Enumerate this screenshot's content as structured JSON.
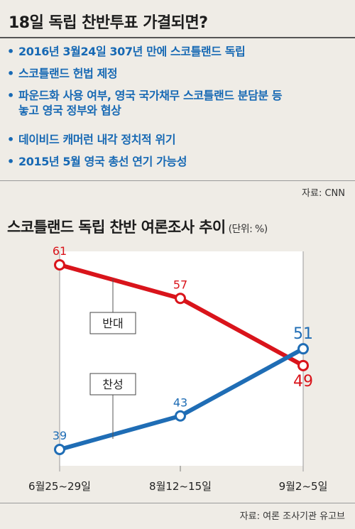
{
  "header": {
    "title": "18일 독립 찬반투표 가결되면?",
    "bullets": [
      [
        "2016년 3월24일 307년 만에 스코틀랜드 독립"
      ],
      [
        "스코틀랜드 헌법 제정"
      ],
      [
        "파운드화 사용 여부, 영국 국가채무 스코틀랜드 분담분 등",
        "놓고 영국 정부와 협상"
      ],
      [
        "데이비드 캐머런 내각 정치적 위기"
      ],
      [
        "2015년 5월 영국 총선 연기 가능성"
      ]
    ],
    "bullet_symbol": "•",
    "source": "자료: CNN"
  },
  "chart_title": "스코틀랜드 독립 찬반 여론조사 추이",
  "chart_unit": "(단위: %)",
  "chart_source": "자료: 여론 조사기관 유고브",
  "colors": {
    "bullet_text": "#1769b4",
    "oppose": "#d9141b",
    "support": "#1f6db5",
    "plot_bg": "#ffffff",
    "page_bg": "#efece6"
  },
  "chart_data": {
    "type": "line",
    "x": [
      "6월25~29일",
      "8월12~15일",
      "9월2~5일"
    ],
    "ylim": [
      30,
      65
    ],
    "series": [
      {
        "name": "반대",
        "values": [
          61,
          57,
          49
        ],
        "color": "#d9141b"
      },
      {
        "name": "찬성",
        "values": [
          39,
          43,
          51
        ],
        "color": "#1f6db5"
      }
    ]
  }
}
